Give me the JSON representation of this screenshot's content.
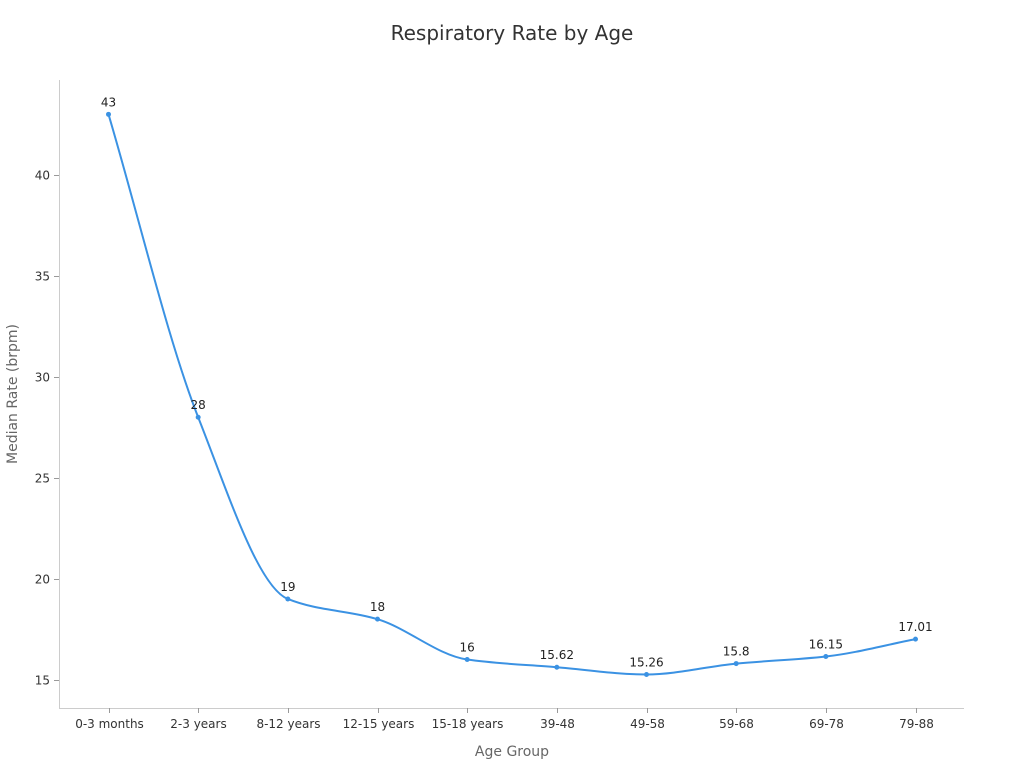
{
  "chart_data": {
    "type": "line",
    "title": "Respiratory Rate by Age",
    "xlabel": "Age Group",
    "ylabel": "Median Rate (brpm)",
    "categories": [
      "0-3 months",
      "2-3 years",
      "8-12 years",
      "12-15 years",
      "15-18 years",
      "39-48",
      "49-58",
      "59-68",
      "69-78",
      "79-88"
    ],
    "series": [
      {
        "values": [
          43,
          28,
          19,
          18,
          16,
          15.62,
          15.26,
          15.8,
          16.15,
          17.01
        ]
      }
    ],
    "data_labels": [
      "43",
      "28",
      "19",
      "18",
      "16",
      "15.62",
      "15.26",
      "15.8",
      "16.15",
      "17.01"
    ],
    "yticks": [
      15,
      20,
      25,
      30,
      35,
      40
    ],
    "ylim": [
      13.6,
      44.7
    ],
    "grid": false,
    "legend": "none",
    "line_color": "#3b92e3",
    "smooth": true
  }
}
